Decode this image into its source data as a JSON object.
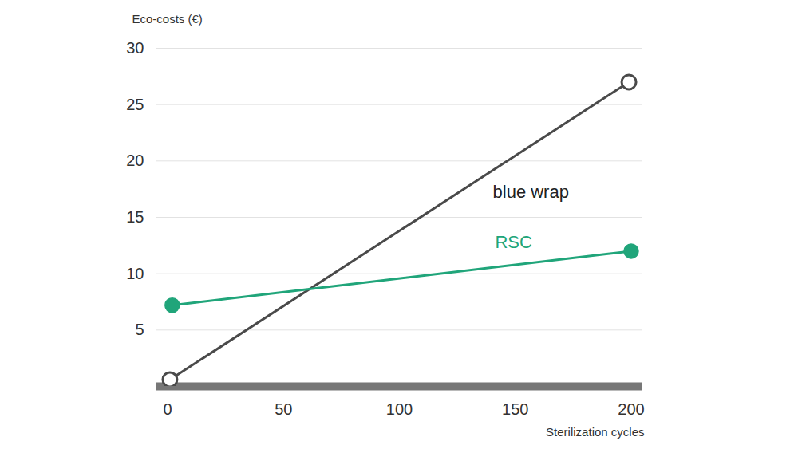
{
  "chart_data": {
    "type": "line",
    "y_label": "Eco-costs (€)",
    "x_label": "Sterilization cycles",
    "xlim": [
      -5,
      205
    ],
    "ylim": [
      0,
      30
    ],
    "xticks": [
      0,
      50,
      100,
      150,
      200
    ],
    "yticks": [
      5,
      10,
      15,
      20,
      25,
      30
    ],
    "grid": true,
    "series": [
      {
        "name": "blue wrap",
        "color": "#4a4a4a",
        "marker": "open_circle",
        "x": [
          1,
          199
        ],
        "values": [
          0.6,
          27
        ]
      },
      {
        "name": "RSC",
        "color": "#20a57a",
        "marker": "circle",
        "x": [
          2,
          200
        ],
        "values": [
          7.2,
          12
        ]
      }
    ]
  }
}
